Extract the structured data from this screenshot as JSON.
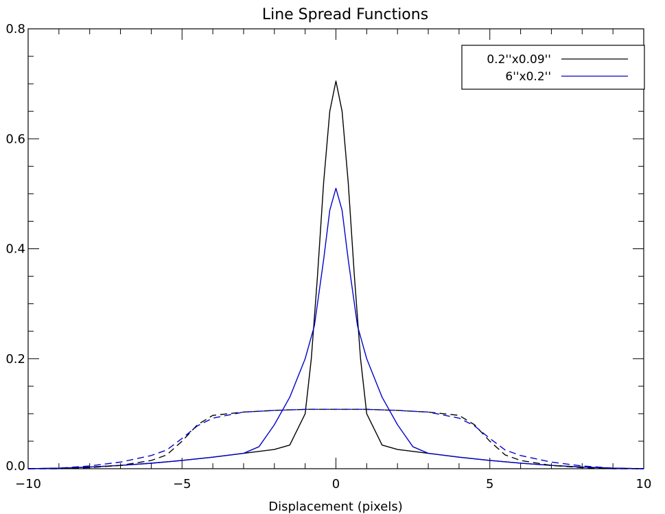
{
  "chart_data": {
    "type": "line",
    "title": "Line Spread Functions",
    "xlabel": "Displacement (pixels)",
    "ylabel": "",
    "xlim": [
      -10,
      10
    ],
    "ylim": [
      0,
      0.8
    ],
    "x_ticks": [
      -10,
      -5,
      0,
      5,
      10
    ],
    "x_tick_labels": [
      "−10",
      "−5",
      "0",
      "5",
      "10"
    ],
    "y_ticks": [
      0,
      0.2,
      0.4,
      0.6,
      0.8
    ],
    "y_tick_labels": [
      "0.0",
      "0.2",
      "0.4",
      "0.6",
      "0.8"
    ],
    "grid": false,
    "legend_position": "top-right",
    "series": [
      {
        "name": "0.2''x0.09''",
        "color": "#000000",
        "style": "solid",
        "x": [
          -10,
          -9,
          -8,
          -7,
          -6,
          -5,
          -4,
          -3,
          -2,
          -1.5,
          -1.0,
          -0.8,
          -0.6,
          -0.4,
          -0.2,
          0,
          0.2,
          0.4,
          0.6,
          0.8,
          1.0,
          1.5,
          2,
          3,
          4,
          5,
          6,
          7,
          8,
          9,
          10
        ],
        "y": [
          0.0,
          0.001,
          0.003,
          0.006,
          0.01,
          0.015,
          0.021,
          0.028,
          0.035,
          0.043,
          0.1,
          0.2,
          0.35,
          0.52,
          0.65,
          0.705,
          0.65,
          0.52,
          0.35,
          0.2,
          0.1,
          0.043,
          0.035,
          0.028,
          0.021,
          0.015,
          0.01,
          0.006,
          0.003,
          0.001,
          0.0
        ]
      },
      {
        "name": "6''x0.2''",
        "color": "#0000cc",
        "style": "solid",
        "x": [
          -10,
          -9,
          -8,
          -7,
          -6,
          -5,
          -4,
          -3,
          -2.5,
          -2,
          -1.5,
          -1,
          -0.7,
          -0.4,
          -0.2,
          0,
          0.2,
          0.4,
          0.7,
          1,
          1.5,
          2,
          2.5,
          3,
          4,
          5,
          6,
          7,
          8,
          9,
          10
        ],
        "y": [
          0.0,
          0.001,
          0.003,
          0.006,
          0.01,
          0.015,
          0.021,
          0.028,
          0.04,
          0.08,
          0.13,
          0.2,
          0.26,
          0.38,
          0.47,
          0.51,
          0.47,
          0.38,
          0.26,
          0.2,
          0.13,
          0.08,
          0.04,
          0.028,
          0.021,
          0.015,
          0.01,
          0.006,
          0.003,
          0.001,
          0.0
        ]
      },
      {
        "name": "",
        "color": "#000000",
        "style": "dashed",
        "x": [
          -10,
          -9,
          -8,
          -7,
          -6,
          -5.5,
          -5,
          -4.5,
          -4,
          -3,
          -2,
          -1,
          0,
          1,
          2,
          3,
          4,
          4.5,
          5,
          5.5,
          6,
          7,
          8,
          9,
          10
        ],
        "y": [
          0.0,
          0.0,
          0.002,
          0.006,
          0.015,
          0.025,
          0.05,
          0.08,
          0.097,
          0.103,
          0.106,
          0.108,
          0.108,
          0.108,
          0.106,
          0.103,
          0.097,
          0.08,
          0.05,
          0.025,
          0.015,
          0.006,
          0.002,
          0.0,
          0.0
        ]
      },
      {
        "name": "",
        "color": "#0000cc",
        "style": "dashed",
        "x": [
          -10,
          -9,
          -8,
          -7,
          -6,
          -5.5,
          -5,
          -4.5,
          -4,
          -3,
          -2,
          -1,
          0,
          1,
          2,
          3,
          4,
          4.5,
          5,
          5.5,
          6,
          7,
          8,
          9,
          10
        ],
        "y": [
          0.0,
          0.001,
          0.005,
          0.012,
          0.024,
          0.034,
          0.055,
          0.078,
          0.092,
          0.103,
          0.106,
          0.108,
          0.108,
          0.108,
          0.106,
          0.103,
          0.092,
          0.078,
          0.055,
          0.034,
          0.024,
          0.012,
          0.005,
          0.001,
          0.0
        ]
      }
    ]
  }
}
